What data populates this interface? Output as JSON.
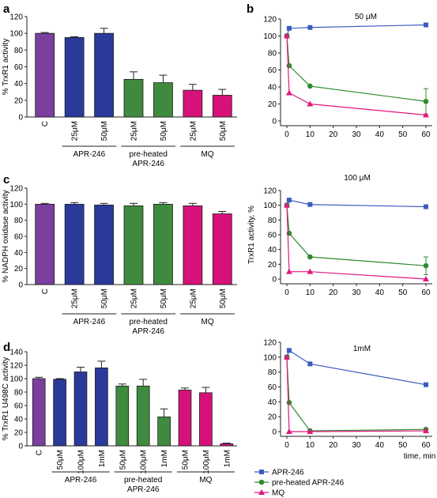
{
  "colors": {
    "control": "#7b3f9e",
    "apr": "#2b3a9a",
    "preheated": "#3f8a3f",
    "mq": "#d6127a",
    "line_apr": "#3b5bbf",
    "line_pre": "#2e8b2e",
    "line_mq": "#e0197f"
  },
  "chart_data": [
    {
      "panel": "a",
      "type": "bar",
      "ylabel": "% TrxR1 activity",
      "ylim": [
        0,
        120
      ],
      "yticks": [
        "0",
        "20",
        "40",
        "60",
        "80",
        "100",
        "120"
      ],
      "categories": [
        "C",
        "25μM",
        "50μM",
        "25μM",
        "50μM",
        "25μM",
        "50μM"
      ],
      "values": [
        100,
        95,
        100,
        45,
        41,
        32,
        26
      ],
      "errors": [
        1,
        1,
        6,
        9,
        9,
        7,
        7
      ],
      "color_keys": [
        "control",
        "apr",
        "apr",
        "preheated",
        "preheated",
        "mq",
        "mq"
      ],
      "groups": [
        {
          "label": "APR-246",
          "from": 1,
          "to": 2
        },
        {
          "label": "pre-heated\nAPR-246",
          "from": 3,
          "to": 4
        },
        {
          "label": "MQ",
          "from": 5,
          "to": 6
        }
      ]
    },
    {
      "panel": "c",
      "type": "bar",
      "ylabel": "% NADPH oxidase activity",
      "ylim": [
        0,
        120
      ],
      "yticks": [
        "0",
        "20",
        "40",
        "60",
        "80",
        "100",
        "120"
      ],
      "categories": [
        "C",
        "25μM",
        "50μM",
        "25μM",
        "50μM",
        "25μM",
        "50μM"
      ],
      "values": [
        100,
        100,
        99,
        98,
        100,
        98,
        88
      ],
      "errors": [
        1,
        2,
        2,
        3,
        2,
        3,
        3
      ],
      "color_keys": [
        "control",
        "apr",
        "apr",
        "preheated",
        "preheated",
        "mq",
        "mq"
      ],
      "groups": [
        {
          "label": "APR-246",
          "from": 1,
          "to": 2
        },
        {
          "label": "pre-heated\nAPR-246",
          "from": 3,
          "to": 4
        },
        {
          "label": "MQ",
          "from": 5,
          "to": 6
        }
      ]
    },
    {
      "panel": "d",
      "type": "bar",
      "ylabel": "% TrxR1 U498C activity",
      "ylim": [
        0,
        140
      ],
      "yticks": [
        "0",
        "20",
        "40",
        "60",
        "80",
        "100",
        "120",
        "140"
      ],
      "categories": [
        "C",
        "50μM",
        "100μM",
        "1mM",
        "50μM",
        "100μM",
        "1mM",
        "50μM",
        "100μM",
        "1mM"
      ],
      "values": [
        100,
        99,
        110,
        116,
        89,
        89,
        43,
        83,
        79,
        3
      ],
      "errors": [
        2,
        1,
        7,
        10,
        3,
        10,
        12,
        3,
        8,
        1
      ],
      "color_keys": [
        "control",
        "apr",
        "apr",
        "apr",
        "preheated",
        "preheated",
        "preheated",
        "mq",
        "mq",
        "mq"
      ],
      "groups": [
        {
          "label": "APR-246",
          "from": 1,
          "to": 3
        },
        {
          "label": "pre-heated\nAPR-246",
          "from": 4,
          "to": 6
        },
        {
          "label": "MQ",
          "from": 7,
          "to": 9
        }
      ]
    },
    {
      "panel": "b",
      "type": "line",
      "title": "50 μM",
      "xlim": [
        0,
        60
      ],
      "xticks": [
        "0",
        "10",
        "20",
        "30",
        "40",
        "50",
        "60"
      ],
      "ylim": [
        0,
        120
      ],
      "yticks": [
        "0",
        "20",
        "40",
        "60",
        "80",
        "100",
        "120"
      ],
      "x": [
        0,
        1,
        10,
        60
      ],
      "series": [
        {
          "name": "APR-246",
          "values": [
            100,
            109,
            110,
            113
          ],
          "errors": [
            0,
            0,
            0,
            0
          ],
          "marker": "square",
          "color_key": "line_apr"
        },
        {
          "name": "pre-heated APR-246",
          "values": [
            100,
            65,
            41,
            23
          ],
          "errors": [
            0,
            0,
            0,
            15
          ],
          "marker": "circle",
          "color_key": "line_pre"
        },
        {
          "name": "MQ",
          "values": [
            100,
            33,
            20,
            7
          ],
          "errors": [
            0,
            0,
            0,
            0
          ],
          "marker": "triangle",
          "color_key": "line_mq"
        }
      ]
    },
    {
      "panel": "b2",
      "type": "line",
      "title": "100 μM",
      "ylabel": "TrxR1 activity, %",
      "xlim": [
        0,
        60
      ],
      "xticks": [
        "0",
        "10",
        "20",
        "30",
        "40",
        "50",
        "60"
      ],
      "ylim": [
        0,
        120
      ],
      "yticks": [
        "0",
        "20",
        "40",
        "60",
        "80",
        "100",
        "120"
      ],
      "x": [
        0,
        1,
        10,
        60
      ],
      "series": [
        {
          "name": "APR-246",
          "values": [
            100,
            107,
            101,
            98
          ],
          "errors": [
            0,
            0,
            0,
            0
          ],
          "marker": "square",
          "color_key": "line_apr"
        },
        {
          "name": "pre-heated APR-246",
          "values": [
            100,
            62,
            30,
            18
          ],
          "errors": [
            0,
            0,
            0,
            12
          ],
          "marker": "circle",
          "color_key": "line_pre"
        },
        {
          "name": "MQ",
          "values": [
            100,
            10,
            10,
            0
          ],
          "errors": [
            0,
            0,
            0,
            0
          ],
          "marker": "triangle",
          "color_key": "line_mq"
        }
      ]
    },
    {
      "panel": "b3",
      "type": "line",
      "title": "1mM",
      "xlabel": "time, min",
      "xlim": [
        0,
        60
      ],
      "xticks": [
        "0",
        "10",
        "20",
        "30",
        "40",
        "50",
        "60"
      ],
      "ylim": [
        0,
        120
      ],
      "yticks": [
        "0",
        "20",
        "40",
        "60",
        "80",
        "100",
        "120"
      ],
      "x": [
        0,
        1,
        10,
        60
      ],
      "series": [
        {
          "name": "APR-246",
          "values": [
            100,
            109,
            91,
            63
          ],
          "errors": [
            0,
            0,
            0,
            0
          ],
          "marker": "square",
          "color_key": "line_apr"
        },
        {
          "name": "pre-heated APR-246",
          "values": [
            100,
            39,
            1,
            3
          ],
          "errors": [
            0,
            0,
            0,
            0
          ],
          "marker": "circle",
          "color_key": "line_pre"
        },
        {
          "name": "MQ",
          "values": [
            100,
            0,
            0,
            1
          ],
          "errors": [
            0,
            0,
            0,
            0
          ],
          "marker": "triangle",
          "color_key": "line_mq"
        }
      ]
    }
  ],
  "legend": {
    "placement": "bottom-right",
    "items": [
      {
        "label": "APR-246",
        "marker": "square",
        "color_key": "line_apr"
      },
      {
        "label": "pre-heated APR-246",
        "marker": "circle",
        "color_key": "line_pre"
      },
      {
        "label": "MQ",
        "marker": "triangle",
        "color_key": "line_mq"
      }
    ]
  },
  "panel_letters": {
    "a": "a",
    "b": "b",
    "c": "c",
    "d": "d"
  }
}
